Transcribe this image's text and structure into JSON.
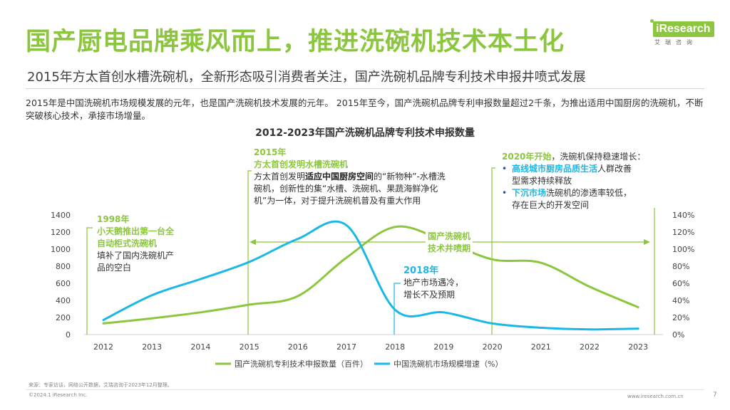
{
  "header": {
    "title": "国产厨电品牌乘风而上，推进洗碗机技术本土化",
    "subtitle": "2015年方太首创水槽洗碗机，全新形态吸引消费者关注，国产洗碗机品牌专利技术申报井喷式发展",
    "description": "2015年是中国洗碗机市场规模发展的元年，也是国产洗碗机技术发展的元年。 2015年至今，国产洗碗机品牌专利申报数量超过2千条，为推出适用中国厨房的洗碗机，不断突破核心技术，承接市场增量。"
  },
  "logo": {
    "main": "iResearch",
    "sub": "艾瑞咨询"
  },
  "colors": {
    "green": "#8cc63f",
    "blue": "#1ab8e6",
    "accent": "#1a4fa0"
  },
  "annotations": {
    "a1998": {
      "year": "1998年",
      "line1": "小天鹅推出第一台全",
      "line2": "自动柜式洗碗机",
      "body1": "填补了国内洗碗机产",
      "body2": "品的空白"
    },
    "a2015": {
      "year": "2015年",
      "headline": "方太首创发明水槽洗碗机",
      "body_pre": "方太首创发明",
      "body_bold": "适应中国厨房空间",
      "body_post": "的“新物种”-水槽洗碗机，创新性的集“水槽、洗碗机、果蔬海鲜净化机”为一体，对于提升洗碗机普及有重大作用"
    },
    "a2018": {
      "year": "2018年",
      "line1": "地产市场遇冷，",
      "line2": "增长不及预期"
    },
    "a2020": {
      "head_bold": "2020年开始",
      "head_rest": "，洗碗机保持稳速增长：",
      "b1_bold": "高线城市厨房品质生活",
      "b1_rest1": "人群改善",
      "b1_rest2": "型需求持续释放",
      "b2_bold": "下沉市场",
      "b2_rest1": "洗碗机的渗透率较低，",
      "b2_rest2": "存在巨大的开发空间"
    },
    "period": {
      "line1": "国产洗碗机",
      "line2": "技术井喷期"
    }
  },
  "chart_data": {
    "type": "line",
    "title": "2012-2023年国产洗碗机品牌专利技术申报数量",
    "x": [
      "2012",
      "2013",
      "2014",
      "2015",
      "2016",
      "2017",
      "2018",
      "2019",
      "2020",
      "2021",
      "2022",
      "2023"
    ],
    "y_left_ticks": [
      "0",
      "200",
      "400",
      "600",
      "800",
      "1000",
      "1200",
      "1400"
    ],
    "y_right_ticks": [
      "0%",
      "20%",
      "40%",
      "60%",
      "80%",
      "100%",
      "120%",
      "140%"
    ],
    "ylim_left": [
      0,
      1400
    ],
    "ylim_right": [
      0,
      140
    ],
    "series": [
      {
        "name": "国产洗碗机专利技术申报数量（百件）",
        "axis": "left",
        "color": "#8cc63f",
        "values": [
          130,
          190,
          260,
          350,
          450,
          900,
          1260,
          1100,
          880,
          840,
          560,
          320
        ]
      },
      {
        "name": "中国洗碗机市场规模增速（%）",
        "axis": "right",
        "color": "#1ab8e6",
        "values": [
          17,
          46,
          65,
          85,
          112,
          128,
          29,
          26,
          13,
          8,
          6,
          7
        ]
      }
    ],
    "legend_position": "bottom",
    "grid": false
  },
  "footer": {
    "source": "来源：专家访谈，网络公开数据，艾瑞咨询于2023年12月整理。",
    "copyright": "©2024.1 iResearch Inc.",
    "website": "www.iresearch.com.cn",
    "page": "7"
  }
}
